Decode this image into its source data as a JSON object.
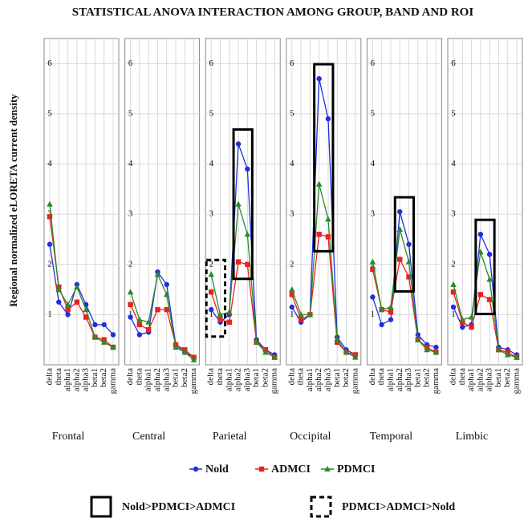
{
  "chart_data": {
    "type": "line",
    "title": "STATISTICAL ANOVA INTERACTION AMONG GROUP, BAND AND ROI",
    "y_label": "Regional normalized eLORETA current density",
    "categories": [
      "delta",
      "theta",
      "alpha1",
      "alpha2",
      "alpha3",
      "beta1",
      "beta2",
      "gamma"
    ],
    "ylim": [
      0,
      6.5
    ],
    "yticks": [
      1,
      2,
      3,
      4,
      5,
      6
    ],
    "grid": true,
    "panels": [
      {
        "name": "Frontal",
        "boxes": []
      },
      {
        "name": "Central",
        "boxes": []
      },
      {
        "name": "Parietal",
        "boxes": [
          {
            "style": "solid",
            "from": 3,
            "to": 4
          },
          {
            "style": "dashed",
            "from": 0,
            "to": 1
          }
        ]
      },
      {
        "name": "Occipital",
        "boxes": [
          {
            "style": "solid",
            "from": 3,
            "to": 4
          }
        ]
      },
      {
        "name": "Temporal",
        "boxes": [
          {
            "style": "solid",
            "from": 3,
            "to": 4
          }
        ]
      },
      {
        "name": "Limbic",
        "boxes": [
          {
            "style": "solid",
            "from": 3,
            "to": 4
          }
        ]
      }
    ],
    "series": [
      {
        "name": "Nold",
        "color": "#1f2fe0",
        "marker": "circle",
        "values": [
          [
            2.4,
            1.25,
            1.0,
            1.6,
            1.2,
            0.8,
            0.8,
            0.6
          ],
          [
            0.95,
            0.6,
            0.65,
            1.85,
            1.6,
            0.4,
            0.25,
            0.15
          ],
          [
            1.1,
            0.85,
            1.0,
            4.4,
            3.9,
            0.5,
            0.3,
            0.2
          ],
          [
            1.15,
            0.85,
            1.0,
            5.7,
            4.9,
            0.55,
            0.3,
            0.2
          ],
          [
            1.35,
            0.8,
            0.9,
            3.05,
            2.4,
            0.6,
            0.4,
            0.35
          ],
          [
            1.15,
            0.75,
            0.8,
            2.6,
            2.2,
            0.35,
            0.3,
            0.2
          ]
        ]
      },
      {
        "name": "ADMCI",
        "color": "#e8231c",
        "marker": "square",
        "values": [
          [
            2.95,
            1.55,
            1.1,
            1.25,
            0.95,
            0.55,
            0.5,
            0.35
          ],
          [
            1.2,
            0.8,
            0.7,
            1.1,
            1.1,
            0.4,
            0.3,
            0.15
          ],
          [
            1.45,
            0.9,
            0.85,
            2.05,
            2.0,
            0.45,
            0.3,
            0.15
          ],
          [
            1.4,
            0.9,
            1.0,
            2.6,
            2.55,
            0.45,
            0.25,
            0.2
          ],
          [
            1.9,
            1.1,
            1.05,
            2.1,
            1.75,
            0.5,
            0.35,
            0.25
          ],
          [
            1.45,
            0.85,
            0.75,
            1.4,
            1.3,
            0.3,
            0.25,
            0.15
          ]
        ]
      },
      {
        "name": "PDMCI",
        "color": "#2a8a2a",
        "marker": "triangle",
        "values": [
          [
            3.2,
            1.5,
            1.2,
            1.55,
            1.1,
            0.55,
            0.45,
            0.35
          ],
          [
            1.45,
            0.9,
            0.85,
            1.8,
            1.4,
            0.35,
            0.25,
            0.1
          ],
          [
            1.8,
            1.0,
            1.05,
            3.2,
            2.6,
            0.45,
            0.25,
            0.15
          ],
          [
            1.5,
            1.0,
            1.0,
            3.6,
            2.9,
            0.5,
            0.25,
            0.15
          ],
          [
            2.05,
            1.1,
            1.15,
            2.7,
            2.05,
            0.5,
            0.3,
            0.25
          ],
          [
            1.6,
            0.9,
            0.95,
            2.25,
            1.7,
            0.3,
            0.2,
            0.15
          ]
        ]
      }
    ],
    "box_legend": [
      {
        "label": "Nold>PDMCI>ADMCI",
        "style": "solid"
      },
      {
        "label": "PDMCI>ADMCI>Nold",
        "style": "dashed"
      }
    ]
  }
}
